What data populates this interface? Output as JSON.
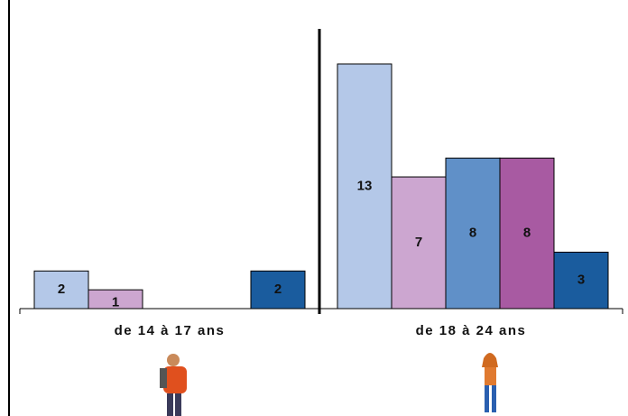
{
  "chart_data": {
    "type": "bar",
    "categories": [
      "de 14 à 17 ans",
      "de 18 à 24 ans"
    ],
    "series": [
      {
        "color": "#b4c8e8",
        "values": [
          2,
          13
        ]
      },
      {
        "color": "#cca6d0",
        "values": [
          1,
          7
        ]
      },
      {
        "color": "#6090c8",
        "values": [
          null,
          8
        ]
      },
      {
        "color": "#a85aa2",
        "values": [
          null,
          8
        ]
      },
      {
        "color": "#1a5c9e",
        "values": [
          2,
          3
        ]
      }
    ]
  }
}
